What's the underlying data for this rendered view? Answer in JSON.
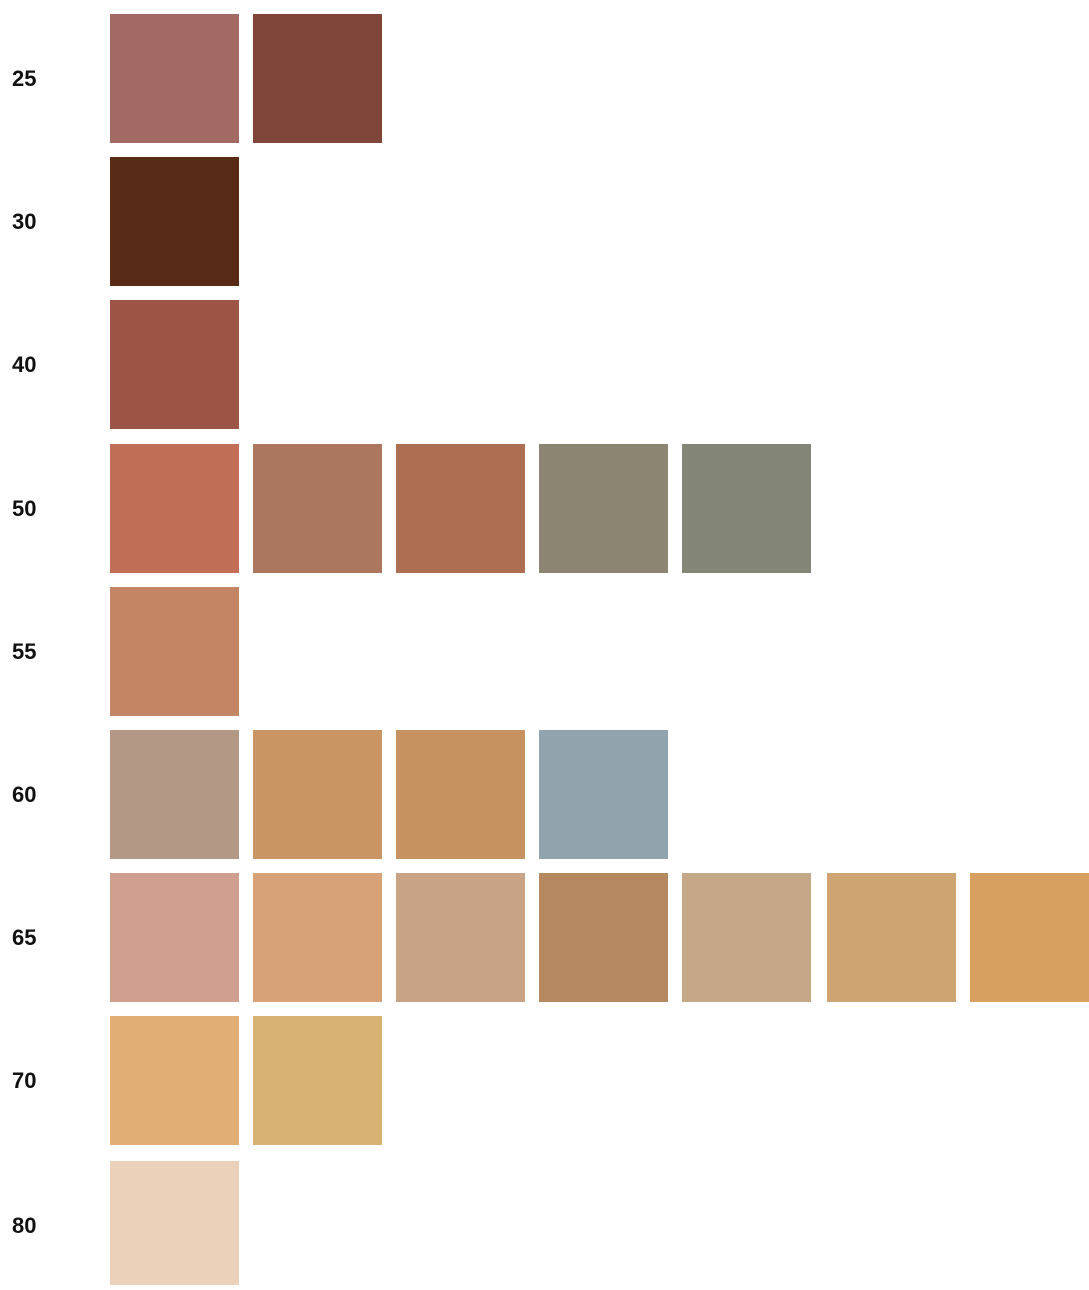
{
  "rows": [
    {
      "label": "25",
      "swatches": [
        "#a26a62",
        "#7f4538"
      ]
    },
    {
      "label": "30",
      "swatches": [
        "#582b16"
      ]
    },
    {
      "label": "40",
      "swatches": [
        "#9c5444"
      ]
    },
    {
      "label": "50",
      "swatches": [
        "#c06e55",
        "#ab775f",
        "#ae6e51",
        "#8b8571",
        "#838676"
      ]
    },
    {
      "label": "55",
      "swatches": [
        "#c38563"
      ]
    },
    {
      "label": "60",
      "swatches": [
        "#b39886",
        "#c99563",
        "#c59260",
        "#91a3ad"
      ]
    },
    {
      "label": "65",
      "swatches": [
        "#d09f8f",
        "#d7a278",
        "#c8a386",
        "#b58860",
        "#c5a888",
        "#cea472",
        "#d8a060"
      ]
    },
    {
      "label": "70",
      "swatches": [
        "#e1ae74",
        "#d8b274"
      ]
    },
    {
      "label": "80",
      "swatches": [
        "#ebd1ba"
      ]
    }
  ]
}
